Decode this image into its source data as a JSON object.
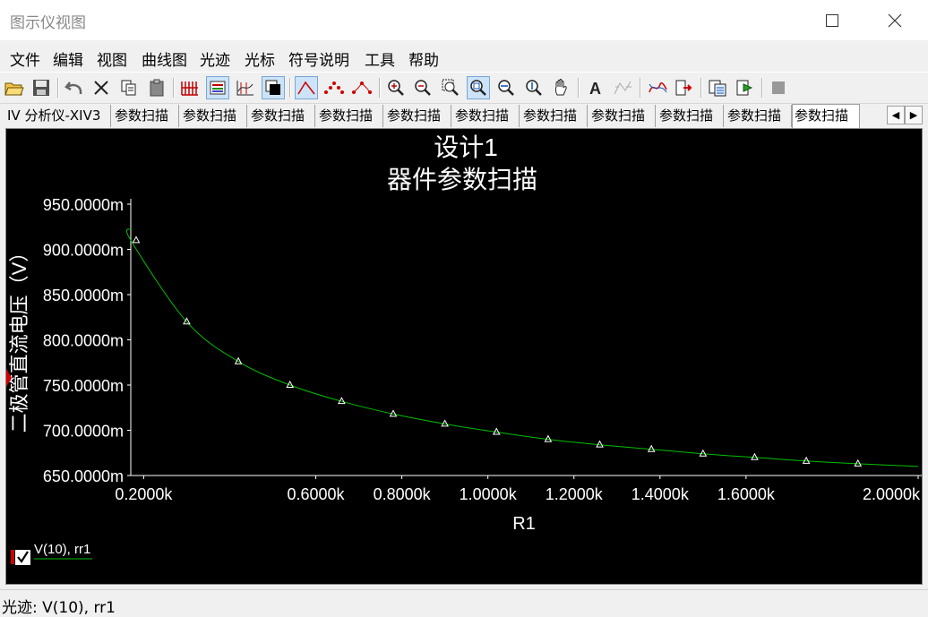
{
  "window": {
    "title": "图示仪视图"
  },
  "menu": {
    "items": [
      "文件",
      "编辑",
      "视图",
      "曲线图",
      "光迹",
      "光标",
      "符号说明",
      "工具",
      "帮助"
    ]
  },
  "tabs": {
    "items": [
      "IV 分析仪-XIV3",
      "参数扫描",
      "参数扫描",
      "参数扫描",
      "参数扫描",
      "参数扫描",
      "参数扫描",
      "参数扫描",
      "参数扫描",
      "参数扫描",
      "参数扫描",
      "参数扫描"
    ],
    "active_index": 11
  },
  "chart_data": {
    "type": "line",
    "title": "设计1",
    "subtitle": "器件参数扫描",
    "xlabel": "R1",
    "ylabel": "二极管直流电压（V）",
    "xlim": [
      0.17,
      2.0
    ],
    "ylim": [
      650,
      970
    ],
    "x_ticks": [
      {
        "value": 0.2,
        "label": "0.2000k"
      },
      {
        "value": 0.6,
        "label": "0.6000k"
      },
      {
        "value": 0.8,
        "label": "0.8000k"
      },
      {
        "value": 1.0,
        "label": "1.0000k"
      },
      {
        "value": 1.2,
        "label": "1.2000k"
      },
      {
        "value": 1.4,
        "label": "1.4000k"
      },
      {
        "value": 1.6,
        "label": "1.6000k"
      },
      {
        "value": 2.0,
        "label": "2.0000k"
      }
    ],
    "y_ticks": [
      {
        "value": 950,
        "label": "950.0000m"
      },
      {
        "value": 900,
        "label": "900.0000m"
      },
      {
        "value": 850,
        "label": "850.0000m"
      },
      {
        "value": 800,
        "label": "800.0000m"
      },
      {
        "value": 750,
        "label": "750.0000m"
      },
      {
        "value": 700,
        "label": "700.0000m"
      },
      {
        "value": 650,
        "label": "650.0000m"
      }
    ],
    "series": [
      {
        "name": "V(10), rr1",
        "color": "#00c000",
        "x": [
          0.17,
          0.3,
          0.42,
          0.54,
          0.66,
          0.78,
          0.9,
          1.02,
          1.14,
          1.26,
          1.38,
          1.5,
          1.62,
          1.74,
          1.86
        ],
        "y": [
          910,
          820,
          776,
          750,
          732,
          718,
          707,
          698,
          690,
          684,
          679,
          674,
          670,
          666,
          663
        ]
      }
    ],
    "curve_end": {
      "x": 2.0,
      "y": 660
    },
    "grid": false,
    "legend": "bottom-left"
  },
  "status": {
    "text": "光迹: V(10), rr1"
  }
}
